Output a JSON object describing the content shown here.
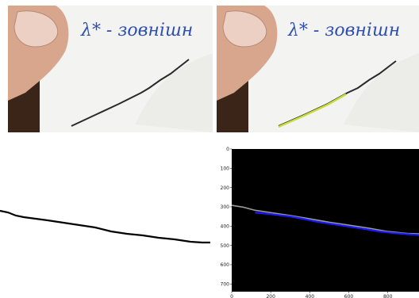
{
  "photo_caption": "λ* - зовнішн",
  "colors": {
    "paper": "#f3f3f1",
    "wood": "#3b2418",
    "skin": "#d8a68c",
    "ink_blue": "#2f4fb0",
    "crack": "#2a2a2a",
    "highlight": "#c8dc3a",
    "plot_bg": "#000000",
    "detect": "#1a1aff"
  },
  "chart_data": {
    "type": "line",
    "title": "",
    "xlabel": "",
    "ylabel": "",
    "x_ticks": [
      "0",
      "200",
      "400",
      "600",
      "800"
    ],
    "y_ticks": [
      "0",
      "100",
      "200",
      "300",
      "400",
      "500",
      "600",
      "700"
    ],
    "xlim": [
      0,
      960
    ],
    "ylim": [
      740,
      0
    ],
    "grid": false,
    "series": [
      {
        "x": [
          0,
          60,
          120,
          200,
          300,
          400,
          500,
          600,
          700,
          800,
          900,
          960
        ],
        "y": [
          292,
          302,
          318,
          330,
          345,
          362,
          380,
          395,
          410,
          428,
          438,
          440
        ]
      },
      {
        "x": [
          120,
          200,
          300,
          380,
          440,
          520,
          600,
          680,
          760,
          820,
          900,
          960
        ],
        "y": [
          330,
          338,
          350,
          365,
          378,
          390,
          402,
          415,
          428,
          435,
          442,
          446
        ]
      }
    ]
  }
}
